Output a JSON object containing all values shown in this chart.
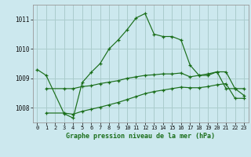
{
  "title": "Graphe pression niveau de la mer (hPa)",
  "background_color": "#cce8ee",
  "grid_color": "#aacccc",
  "line_color": "#1a6e1a",
  "xlim": [
    -0.5,
    23.5
  ],
  "ylim": [
    1007.5,
    1011.5
  ],
  "yticks": [
    1008,
    1009,
    1010,
    1011
  ],
  "xticks": [
    0,
    1,
    2,
    3,
    4,
    5,
    6,
    7,
    8,
    9,
    10,
    11,
    12,
    13,
    14,
    15,
    16,
    17,
    18,
    19,
    20,
    21,
    22,
    23
  ],
  "series": [
    {
      "x": [
        0,
        1,
        3,
        4,
        5,
        6,
        7,
        8,
        9,
        10,
        11,
        12,
        13,
        14,
        15,
        16,
        17,
        18,
        19,
        20,
        21,
        22,
        23
      ],
      "y": [
        1009.3,
        1009.1,
        1007.8,
        1007.65,
        1008.85,
        1009.2,
        1009.5,
        1010.0,
        1010.3,
        1010.65,
        1011.05,
        1011.2,
        1010.5,
        1010.42,
        1010.42,
        1010.3,
        1009.45,
        1009.1,
        1009.1,
        1009.22,
        1008.65,
        1008.65,
        1008.42
      ]
    },
    {
      "x": [
        1,
        3,
        4,
        5,
        6,
        7,
        8,
        9,
        10,
        11,
        12,
        13,
        14,
        15,
        16,
        17,
        18,
        19,
        20,
        21,
        22,
        23
      ],
      "y": [
        1008.65,
        1008.65,
        1008.65,
        1008.72,
        1008.75,
        1008.82,
        1008.87,
        1008.92,
        1009.0,
        1009.05,
        1009.1,
        1009.12,
        1009.15,
        1009.15,
        1009.18,
        1009.05,
        1009.1,
        1009.15,
        1009.22,
        1009.22,
        1008.65,
        1008.65
      ]
    },
    {
      "x": [
        1,
        3,
        4,
        5,
        6,
        7,
        8,
        9,
        10,
        11,
        12,
        13,
        14,
        15,
        16,
        17,
        18,
        19,
        20,
        21,
        22,
        23
      ],
      "y": [
        1007.82,
        1007.82,
        1007.78,
        1007.88,
        1007.95,
        1008.02,
        1008.1,
        1008.18,
        1008.28,
        1008.38,
        1008.48,
        1008.55,
        1008.6,
        1008.65,
        1008.7,
        1008.68,
        1008.68,
        1008.72,
        1008.78,
        1008.82,
        1008.32,
        1008.32
      ]
    }
  ]
}
